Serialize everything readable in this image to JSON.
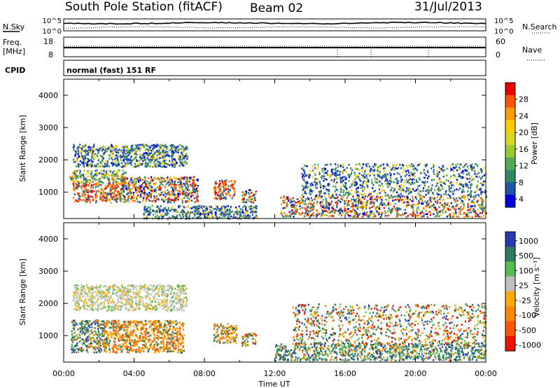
{
  "header": {
    "station": "South Pole Station (fitACF)",
    "beam": "Beam 02",
    "date": "31/Jul/2013",
    "cpid_label": "CPID",
    "mode": "normal (fast) 151 RF"
  },
  "top_panels": {
    "nsky": {
      "left_label": "N.Sky",
      "right_label": "N.Search",
      "left_ticks": [
        "10^5",
        "10^0"
      ],
      "right_ticks": [
        "10^5",
        "10^0"
      ]
    },
    "freq": {
      "left_label": "Freq.",
      "left_unit": "[MHz]",
      "right_label": "Nave",
      "left_ticks": [
        "18",
        "8"
      ],
      "right_ticks": [
        "60",
        "0"
      ]
    }
  },
  "chart_data": [
    {
      "type": "heatmap",
      "quantity": "power",
      "ylabel": "Slant Range [km]",
      "yticks": [
        "4000",
        "3000",
        "2000",
        "1000"
      ],
      "ylim": [
        180,
        4500
      ],
      "xlabel": "",
      "colorbar": {
        "label": "Power [dB]",
        "ticks": [
          "28",
          "24",
          "20",
          "16",
          "12",
          "8",
          "4"
        ],
        "colors": [
          "#ee0000",
          "#ff5500",
          "#ff9900",
          "#ffcc00",
          "#d8d820",
          "#99cc33",
          "#55aa55",
          "#338866",
          "#2255aa",
          "#0000dd"
        ]
      },
      "regions": [
        {
          "t": [
            0.5,
            3.2
          ],
          "r": [
            700,
            1300
          ],
          "level": "high"
        },
        {
          "t": [
            0.3,
            3.5
          ],
          "r": [
            1300,
            1700
          ],
          "level": "mid"
        },
        {
          "t": [
            0.5,
            7.0
          ],
          "r": [
            1800,
            2500
          ],
          "level": "low"
        },
        {
          "t": [
            3.2,
            7.6
          ],
          "r": [
            700,
            1500
          ],
          "level": "mixed"
        },
        {
          "t": [
            8.5,
            9.7
          ],
          "r": [
            800,
            1400
          ],
          "level": "high"
        },
        {
          "t": [
            10.1,
            10.9
          ],
          "r": [
            700,
            1100
          ],
          "level": "mixed"
        },
        {
          "t": [
            12.3,
            24.0
          ],
          "r": [
            250,
            900
          ],
          "level": "mixed"
        },
        {
          "t": [
            13.5,
            24.0
          ],
          "r": [
            900,
            1900
          ],
          "level": "low"
        },
        {
          "t": [
            4.5,
            11.0
          ],
          "r": [
            200,
            600
          ],
          "level": "low"
        }
      ]
    },
    {
      "type": "heatmap",
      "quantity": "velocity",
      "ylabel": "Slant Range [km]",
      "yticks": [
        "4000",
        "3000",
        "2000",
        "1000"
      ],
      "ylim": [
        180,
        4500
      ],
      "xlabel": "Time UT",
      "xticks": [
        "00:00",
        "04:00",
        "08:00",
        "12:00",
        "16:00",
        "20:00",
        "00:00"
      ],
      "colorbar": {
        "label": "Velocity [m s⁻¹]",
        "ticks": [
          "1000",
          "500",
          "100",
          "25",
          "-25",
          "-100",
          "-500",
          "-1000"
        ],
        "colors": [
          "#2a3ab0",
          "#2f7a60",
          "#55bb55",
          "#bfbfbf",
          "#ffaa00",
          "#ff8800",
          "#ff5500",
          "#ee1100"
        ]
      },
      "regions": [
        {
          "t": [
            0.4,
            2.3
          ],
          "r": [
            500,
            1500
          ],
          "level": "green"
        },
        {
          "t": [
            2.2,
            6.8
          ],
          "r": [
            500,
            1500
          ],
          "level": "orange"
        },
        {
          "t": [
            0.5,
            7.0
          ],
          "r": [
            1800,
            2600
          ],
          "level": "gray"
        },
        {
          "t": [
            8.5,
            9.8
          ],
          "r": [
            800,
            1400
          ],
          "level": "orange"
        },
        {
          "t": [
            10.1,
            10.9
          ],
          "r": [
            700,
            1100
          ],
          "level": "mixed"
        },
        {
          "t": [
            12.0,
            24.0
          ],
          "r": [
            250,
            800
          ],
          "level": "green"
        },
        {
          "t": [
            13.0,
            24.0
          ],
          "r": [
            700,
            2000
          ],
          "level": "mixed"
        }
      ]
    }
  ]
}
